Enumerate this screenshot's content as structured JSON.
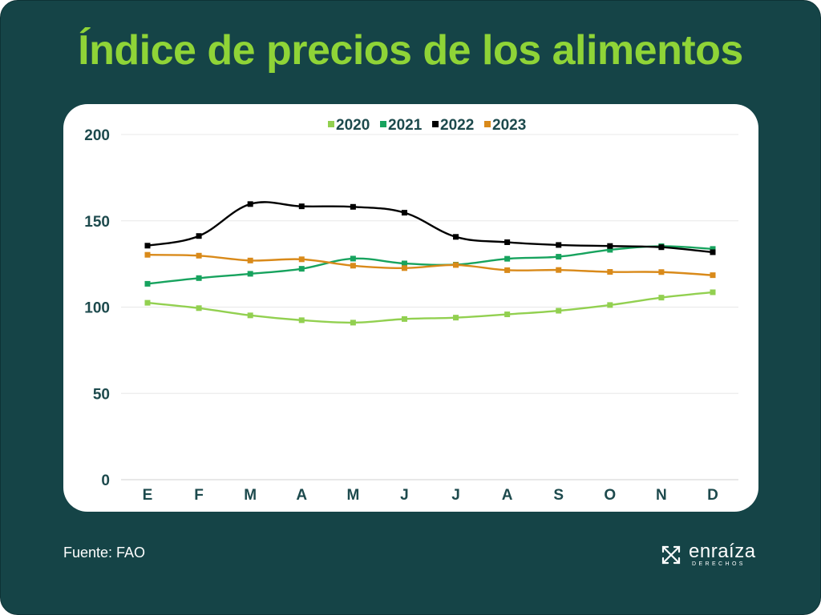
{
  "title": "Índice de precios de los alimentos",
  "source": "Fuente: FAO",
  "brand": {
    "name": "enraíza",
    "subtitle": "DERECHOS",
    "icon": "cross-arrows-icon"
  },
  "chart_data": {
    "type": "line",
    "title": "Índice de precios de los alimentos",
    "categories": [
      "E",
      "F",
      "M",
      "A",
      "M",
      "J",
      "J",
      "A",
      "S",
      "O",
      "N",
      "D"
    ],
    "yticks": [
      0,
      50,
      100,
      150,
      200
    ],
    "ylim": [
      0,
      200
    ],
    "grid": true,
    "legend_position": "top",
    "series": [
      {
        "name": "2020",
        "color": "#92d050",
        "values": [
          102.5,
          99.4,
          95.2,
          92.4,
          91.0,
          93.1,
          93.9,
          95.8,
          97.9,
          101.2,
          105.5,
          108.6
        ]
      },
      {
        "name": "2021",
        "color": "#17a35e",
        "values": [
          113.5,
          116.8,
          119.3,
          122.2,
          128.1,
          125.3,
          124.6,
          128.0,
          129.2,
          133.2,
          135.3,
          133.7
        ]
      },
      {
        "name": "2022",
        "color": "#000000",
        "values": [
          135.6,
          141.2,
          159.7,
          158.4,
          158.1,
          154.7,
          140.7,
          137.6,
          136.0,
          135.4,
          134.7,
          131.8
        ]
      },
      {
        "name": "2023",
        "color": "#d98a1a",
        "values": [
          130.3,
          129.8,
          127.0,
          127.7,
          124.0,
          122.6,
          124.4,
          121.4,
          121.5,
          120.4,
          120.3,
          118.5
        ]
      }
    ]
  }
}
